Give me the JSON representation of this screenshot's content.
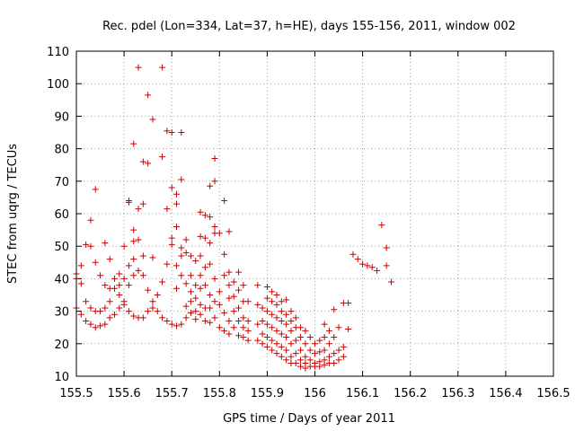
{
  "chart_data": {
    "type": "scatter",
    "title": "Rec. pdel (Lon=334, Lat=37, h=HE), days 155-156, 2011, window 002",
    "xlabel": "GPS time / Days of year 2011",
    "ylabel": "STEC from uqrg / TECUs",
    "xlim": [
      155.5,
      156.5
    ],
    "ylim": [
      10,
      110
    ],
    "grid": true,
    "marker": "+",
    "color": "#cc0000",
    "xticks": [
      "155.5",
      "155.6",
      "155.7",
      "155.8",
      "155.9",
      "156",
      "156.1",
      "156.2",
      "156.3",
      "156.4",
      "156.5"
    ],
    "yticks": [
      "10",
      "20",
      "30",
      "40",
      "50",
      "60",
      "70",
      "80",
      "90",
      "100",
      "110"
    ],
    "xtick_values": [
      155.5,
      155.6,
      155.7,
      155.8,
      155.9,
      156.0,
      156.1,
      156.2,
      156.3,
      156.4,
      156.5
    ],
    "ytick_values": [
      10,
      20,
      30,
      40,
      50,
      60,
      70,
      80,
      90,
      100,
      110
    ],
    "series": [
      {
        "points": [
          [
            155.5,
            41.5
          ],
          [
            155.5,
            40
          ],
          [
            155.5,
            31
          ],
          [
            155.51,
            44
          ],
          [
            155.51,
            38.5
          ],
          [
            155.51,
            29
          ],
          [
            155.52,
            50.5
          ],
          [
            155.52,
            33
          ],
          [
            155.52,
            27
          ],
          [
            155.53,
            50
          ],
          [
            155.53,
            58
          ],
          [
            155.53,
            31
          ],
          [
            155.53,
            26
          ],
          [
            155.54,
            67.5
          ],
          [
            155.54,
            45
          ],
          [
            155.54,
            30
          ],
          [
            155.54,
            25
          ],
          [
            155.55,
            41
          ],
          [
            155.55,
            30
          ],
          [
            155.55,
            25.5
          ],
          [
            155.56,
            51
          ],
          [
            155.56,
            38
          ],
          [
            155.56,
            31
          ],
          [
            155.56,
            26
          ],
          [
            155.57,
            46
          ],
          [
            155.57,
            37
          ],
          [
            155.57,
            33
          ],
          [
            155.57,
            28
          ],
          [
            155.58,
            40
          ],
          [
            155.58,
            37
          ],
          [
            155.58,
            29
          ],
          [
            155.59,
            41.5
          ],
          [
            155.59,
            38
          ],
          [
            155.59,
            35
          ],
          [
            155.59,
            31
          ],
          [
            155.6,
            50
          ],
          [
            155.6,
            40
          ],
          [
            155.6,
            33
          ],
          [
            155.6,
            32
          ],
          [
            155.61,
            64
          ],
          [
            155.61,
            63.5
          ],
          [
            155.61,
            44
          ],
          [
            155.61,
            38
          ],
          [
            155.61,
            30
          ],
          [
            155.62,
            81.5
          ],
          [
            155.62,
            55
          ],
          [
            155.62,
            51.5
          ],
          [
            155.62,
            46
          ],
          [
            155.62,
            41
          ],
          [
            155.62,
            28.5
          ],
          [
            155.63,
            105
          ],
          [
            155.63,
            61.5
          ],
          [
            155.63,
            52
          ],
          [
            155.63,
            42.5
          ],
          [
            155.63,
            28
          ],
          [
            155.64,
            63
          ],
          [
            155.64,
            76
          ],
          [
            155.64,
            47
          ],
          [
            155.64,
            41
          ],
          [
            155.64,
            28
          ],
          [
            155.65,
            96.5
          ],
          [
            155.65,
            75.5
          ],
          [
            155.65,
            36.5
          ],
          [
            155.65,
            30
          ],
          [
            155.66,
            89
          ],
          [
            155.66,
            46.5
          ],
          [
            155.66,
            33
          ],
          [
            155.66,
            31
          ],
          [
            155.67,
            35
          ],
          [
            155.67,
            30
          ],
          [
            155.68,
            105
          ],
          [
            155.68,
            77.5
          ],
          [
            155.68,
            39
          ],
          [
            155.68,
            28
          ],
          [
            155.69,
            85.5
          ],
          [
            155.69,
            61.5
          ],
          [
            155.69,
            44.5
          ],
          [
            155.69,
            27
          ],
          [
            155.7,
            85
          ],
          [
            155.7,
            68
          ],
          [
            155.7,
            52.5
          ],
          [
            155.7,
            50.5
          ],
          [
            155.7,
            26
          ],
          [
            155.71,
            66
          ],
          [
            155.71,
            63
          ],
          [
            155.71,
            56
          ],
          [
            155.71,
            44
          ],
          [
            155.71,
            37
          ],
          [
            155.71,
            25.5
          ],
          [
            155.72,
            85
          ],
          [
            155.72,
            70.5
          ],
          [
            155.72,
            49.5
          ],
          [
            155.72,
            47
          ],
          [
            155.72,
            41
          ],
          [
            155.72,
            26
          ],
          [
            155.73,
            52
          ],
          [
            155.73,
            48
          ],
          [
            155.73,
            38.5
          ],
          [
            155.73,
            31.5
          ],
          [
            155.73,
            28
          ],
          [
            155.74,
            47
          ],
          [
            155.74,
            41
          ],
          [
            155.74,
            36
          ],
          [
            155.74,
            33
          ],
          [
            155.74,
            29.5
          ],
          [
            155.75,
            45.5
          ],
          [
            155.75,
            38
          ],
          [
            155.75,
            34
          ],
          [
            155.75,
            30
          ],
          [
            155.75,
            27.5
          ],
          [
            155.76,
            60.5
          ],
          [
            155.76,
            53
          ],
          [
            155.76,
            47
          ],
          [
            155.76,
            41
          ],
          [
            155.76,
            37
          ],
          [
            155.76,
            32
          ],
          [
            155.76,
            29
          ],
          [
            155.77,
            59.5
          ],
          [
            155.77,
            52.5
          ],
          [
            155.77,
            43.5
          ],
          [
            155.77,
            38
          ],
          [
            155.77,
            31
          ],
          [
            155.77,
            27
          ],
          [
            155.78,
            68.5
          ],
          [
            155.78,
            59
          ],
          [
            155.78,
            51
          ],
          [
            155.78,
            44.5
          ],
          [
            155.78,
            35
          ],
          [
            155.78,
            31
          ],
          [
            155.78,
            26.5
          ],
          [
            155.79,
            77
          ],
          [
            155.79,
            70
          ],
          [
            155.79,
            56
          ],
          [
            155.79,
            54
          ],
          [
            155.79,
            40
          ],
          [
            155.79,
            33
          ],
          [
            155.79,
            28
          ],
          [
            155.8,
            54
          ],
          [
            155.8,
            36
          ],
          [
            155.8,
            32
          ],
          [
            155.8,
            25
          ],
          [
            155.81,
            64
          ],
          [
            155.81,
            47.5
          ],
          [
            155.81,
            41
          ],
          [
            155.81,
            29.5
          ],
          [
            155.81,
            24
          ],
          [
            155.82,
            54.5
          ],
          [
            155.82,
            42
          ],
          [
            155.82,
            38
          ],
          [
            155.82,
            34
          ],
          [
            155.82,
            27
          ],
          [
            155.82,
            23
          ],
          [
            155.83,
            39
          ],
          [
            155.83,
            34.5
          ],
          [
            155.83,
            30
          ],
          [
            155.83,
            25
          ],
          [
            155.84,
            42
          ],
          [
            155.84,
            36.5
          ],
          [
            155.84,
            31
          ],
          [
            155.84,
            27
          ],
          [
            155.84,
            22.5
          ],
          [
            155.85,
            38
          ],
          [
            155.85,
            33
          ],
          [
            155.85,
            28
          ],
          [
            155.85,
            25
          ],
          [
            155.85,
            22
          ],
          [
            155.86,
            33
          ],
          [
            155.86,
            27
          ],
          [
            155.86,
            24
          ],
          [
            155.86,
            21
          ],
          [
            155.88,
            38
          ],
          [
            155.88,
            32
          ],
          [
            155.88,
            26
          ],
          [
            155.88,
            21
          ],
          [
            155.89,
            31
          ],
          [
            155.89,
            27
          ],
          [
            155.89,
            23
          ],
          [
            155.89,
            20
          ],
          [
            155.9,
            37.5
          ],
          [
            155.9,
            34
          ],
          [
            155.9,
            30
          ],
          [
            155.9,
            26
          ],
          [
            155.9,
            22
          ],
          [
            155.9,
            19
          ],
          [
            155.91,
            36
          ],
          [
            155.91,
            33
          ],
          [
            155.91,
            29
          ],
          [
            155.91,
            25
          ],
          [
            155.91,
            21
          ],
          [
            155.91,
            18
          ],
          [
            155.92,
            35
          ],
          [
            155.92,
            32
          ],
          [
            155.92,
            28
          ],
          [
            155.92,
            24
          ],
          [
            155.92,
            20
          ],
          [
            155.92,
            17
          ],
          [
            155.93,
            33
          ],
          [
            155.93,
            30
          ],
          [
            155.93,
            27
          ],
          [
            155.93,
            23
          ],
          [
            155.93,
            19
          ],
          [
            155.93,
            16
          ],
          [
            155.94,
            33.5
          ],
          [
            155.94,
            29
          ],
          [
            155.94,
            26
          ],
          [
            155.94,
            22
          ],
          [
            155.94,
            18
          ],
          [
            155.94,
            15
          ],
          [
            155.95,
            30
          ],
          [
            155.95,
            27
          ],
          [
            155.95,
            24
          ],
          [
            155.95,
            20
          ],
          [
            155.95,
            16
          ],
          [
            155.95,
            14
          ],
          [
            155.96,
            28
          ],
          [
            155.96,
            25
          ],
          [
            155.96,
            21
          ],
          [
            155.96,
            17
          ],
          [
            155.96,
            14
          ],
          [
            155.97,
            25
          ],
          [
            155.97,
            22
          ],
          [
            155.97,
            18
          ],
          [
            155.97,
            15
          ],
          [
            155.97,
            13
          ],
          [
            155.98,
            24
          ],
          [
            155.98,
            20
          ],
          [
            155.98,
            16
          ],
          [
            155.98,
            14
          ],
          [
            155.98,
            12.5
          ],
          [
            155.99,
            22
          ],
          [
            155.99,
            18
          ],
          [
            155.99,
            15
          ],
          [
            155.99,
            13
          ],
          [
            156.0,
            20
          ],
          [
            156.0,
            17
          ],
          [
            156.0,
            14
          ],
          [
            156.0,
            13
          ],
          [
            156.01,
            21
          ],
          [
            156.01,
            17.5
          ],
          [
            156.01,
            14.5
          ],
          [
            156.01,
            13
          ],
          [
            156.02,
            26
          ],
          [
            156.02,
            22
          ],
          [
            156.02,
            18
          ],
          [
            156.02,
            15
          ],
          [
            156.02,
            13.5
          ],
          [
            156.03,
            24
          ],
          [
            156.03,
            20
          ],
          [
            156.03,
            16
          ],
          [
            156.03,
            14
          ],
          [
            156.04,
            30.5
          ],
          [
            156.04,
            22
          ],
          [
            156.04,
            17
          ],
          [
            156.04,
            14
          ],
          [
            156.05,
            25
          ],
          [
            156.05,
            18
          ],
          [
            156.05,
            15
          ],
          [
            156.06,
            32.5
          ],
          [
            156.06,
            19
          ],
          [
            156.06,
            16
          ],
          [
            156.07,
            24.5
          ],
          [
            156.07,
            32.5
          ],
          [
            156.08,
            47.5
          ],
          [
            156.09,
            46
          ],
          [
            156.1,
            44.5
          ],
          [
            156.11,
            44
          ],
          [
            156.12,
            43.5
          ],
          [
            156.13,
            42.5
          ],
          [
            156.14,
            56.5
          ],
          [
            156.15,
            44
          ],
          [
            156.15,
            49.5
          ],
          [
            156.16,
            39
          ]
        ]
      }
    ]
  }
}
